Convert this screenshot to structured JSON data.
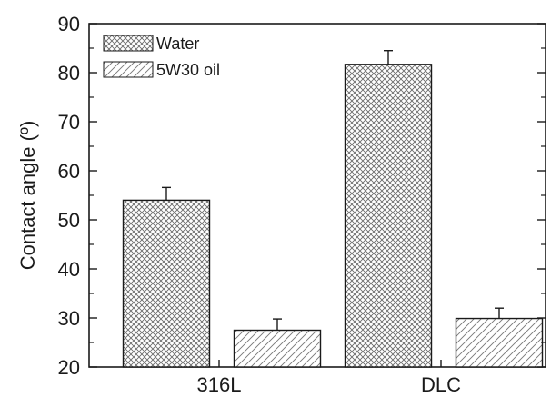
{
  "chart_data": {
    "type": "bar",
    "categories": [
      "316L",
      "DLC"
    ],
    "series": [
      {
        "name": "Water",
        "values": [
          54.0,
          81.7
        ],
        "errors": [
          2.6,
          2.8
        ],
        "pattern": "crosshatch"
      },
      {
        "name": "5W30 oil",
        "values": [
          27.5,
          29.9
        ],
        "errors": [
          2.3,
          2.1
        ],
        "pattern": "diagonal"
      }
    ],
    "title": "",
    "xlabel": "",
    "ylabel": "Contact angle (º)",
    "ylim": [
      20,
      90
    ],
    "yticks": [
      20,
      30,
      40,
      50,
      60,
      70,
      80,
      90
    ],
    "grid": false,
    "legend_position": "top-left",
    "colors": {
      "axis": "#1a1a1a",
      "bar_fill": "#ffffff",
      "hatch": "#555555"
    }
  }
}
